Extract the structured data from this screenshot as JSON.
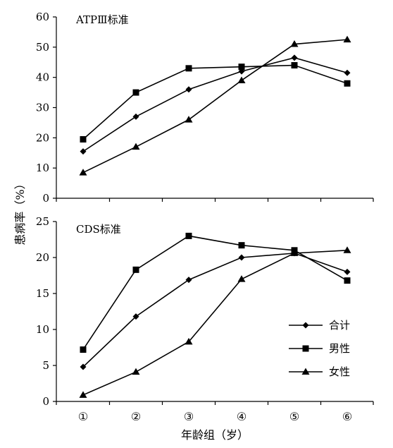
{
  "figure": {
    "ylabel": "患病率（%）",
    "xlabel": "年龄组（岁）",
    "categories": [
      "①",
      "②",
      "③",
      "④",
      "⑤",
      "⑥"
    ]
  },
  "legend": {
    "placement": "inside-bottom-right of lower panel",
    "entries": [
      {
        "name": "合计",
        "marker": "diamond"
      },
      {
        "name": "男性",
        "marker": "square"
      },
      {
        "name": "女性",
        "marker": "triangle"
      }
    ]
  },
  "chart_data": [
    {
      "type": "line",
      "title": "ATPⅢ标准",
      "categories": [
        "①",
        "②",
        "③",
        "④",
        "⑤",
        "⑥"
      ],
      "ylim": [
        0,
        60
      ],
      "yticks": [
        0,
        10,
        20,
        30,
        40,
        50,
        60
      ],
      "grid": false,
      "series": [
        {
          "name": "合计",
          "marker": "diamond",
          "values": [
            15.5,
            27,
            36,
            42,
            46.5,
            41.5
          ]
        },
        {
          "name": "男性",
          "marker": "square",
          "values": [
            19.5,
            35,
            43,
            43.5,
            44,
            38
          ]
        },
        {
          "name": "女性",
          "marker": "triangle",
          "values": [
            8.5,
            17,
            26,
            39,
            51,
            52.5
          ]
        }
      ]
    },
    {
      "type": "line",
      "title": "CDS标准",
      "categories": [
        "①",
        "②",
        "③",
        "④",
        "⑤",
        "⑥"
      ],
      "ylim": [
        0,
        25
      ],
      "yticks": [
        0,
        5,
        10,
        15,
        20,
        25
      ],
      "grid": false,
      "series": [
        {
          "name": "合计",
          "marker": "diamond",
          "values": [
            4.8,
            11.8,
            16.9,
            20,
            20.6,
            18
          ]
        },
        {
          "name": "男性",
          "marker": "square",
          "values": [
            7.2,
            18.3,
            23,
            21.7,
            21,
            16.8
          ]
        },
        {
          "name": "女性",
          "marker": "triangle",
          "values": [
            0.9,
            4.1,
            8.3,
            17,
            20.6,
            21
          ]
        }
      ]
    }
  ]
}
